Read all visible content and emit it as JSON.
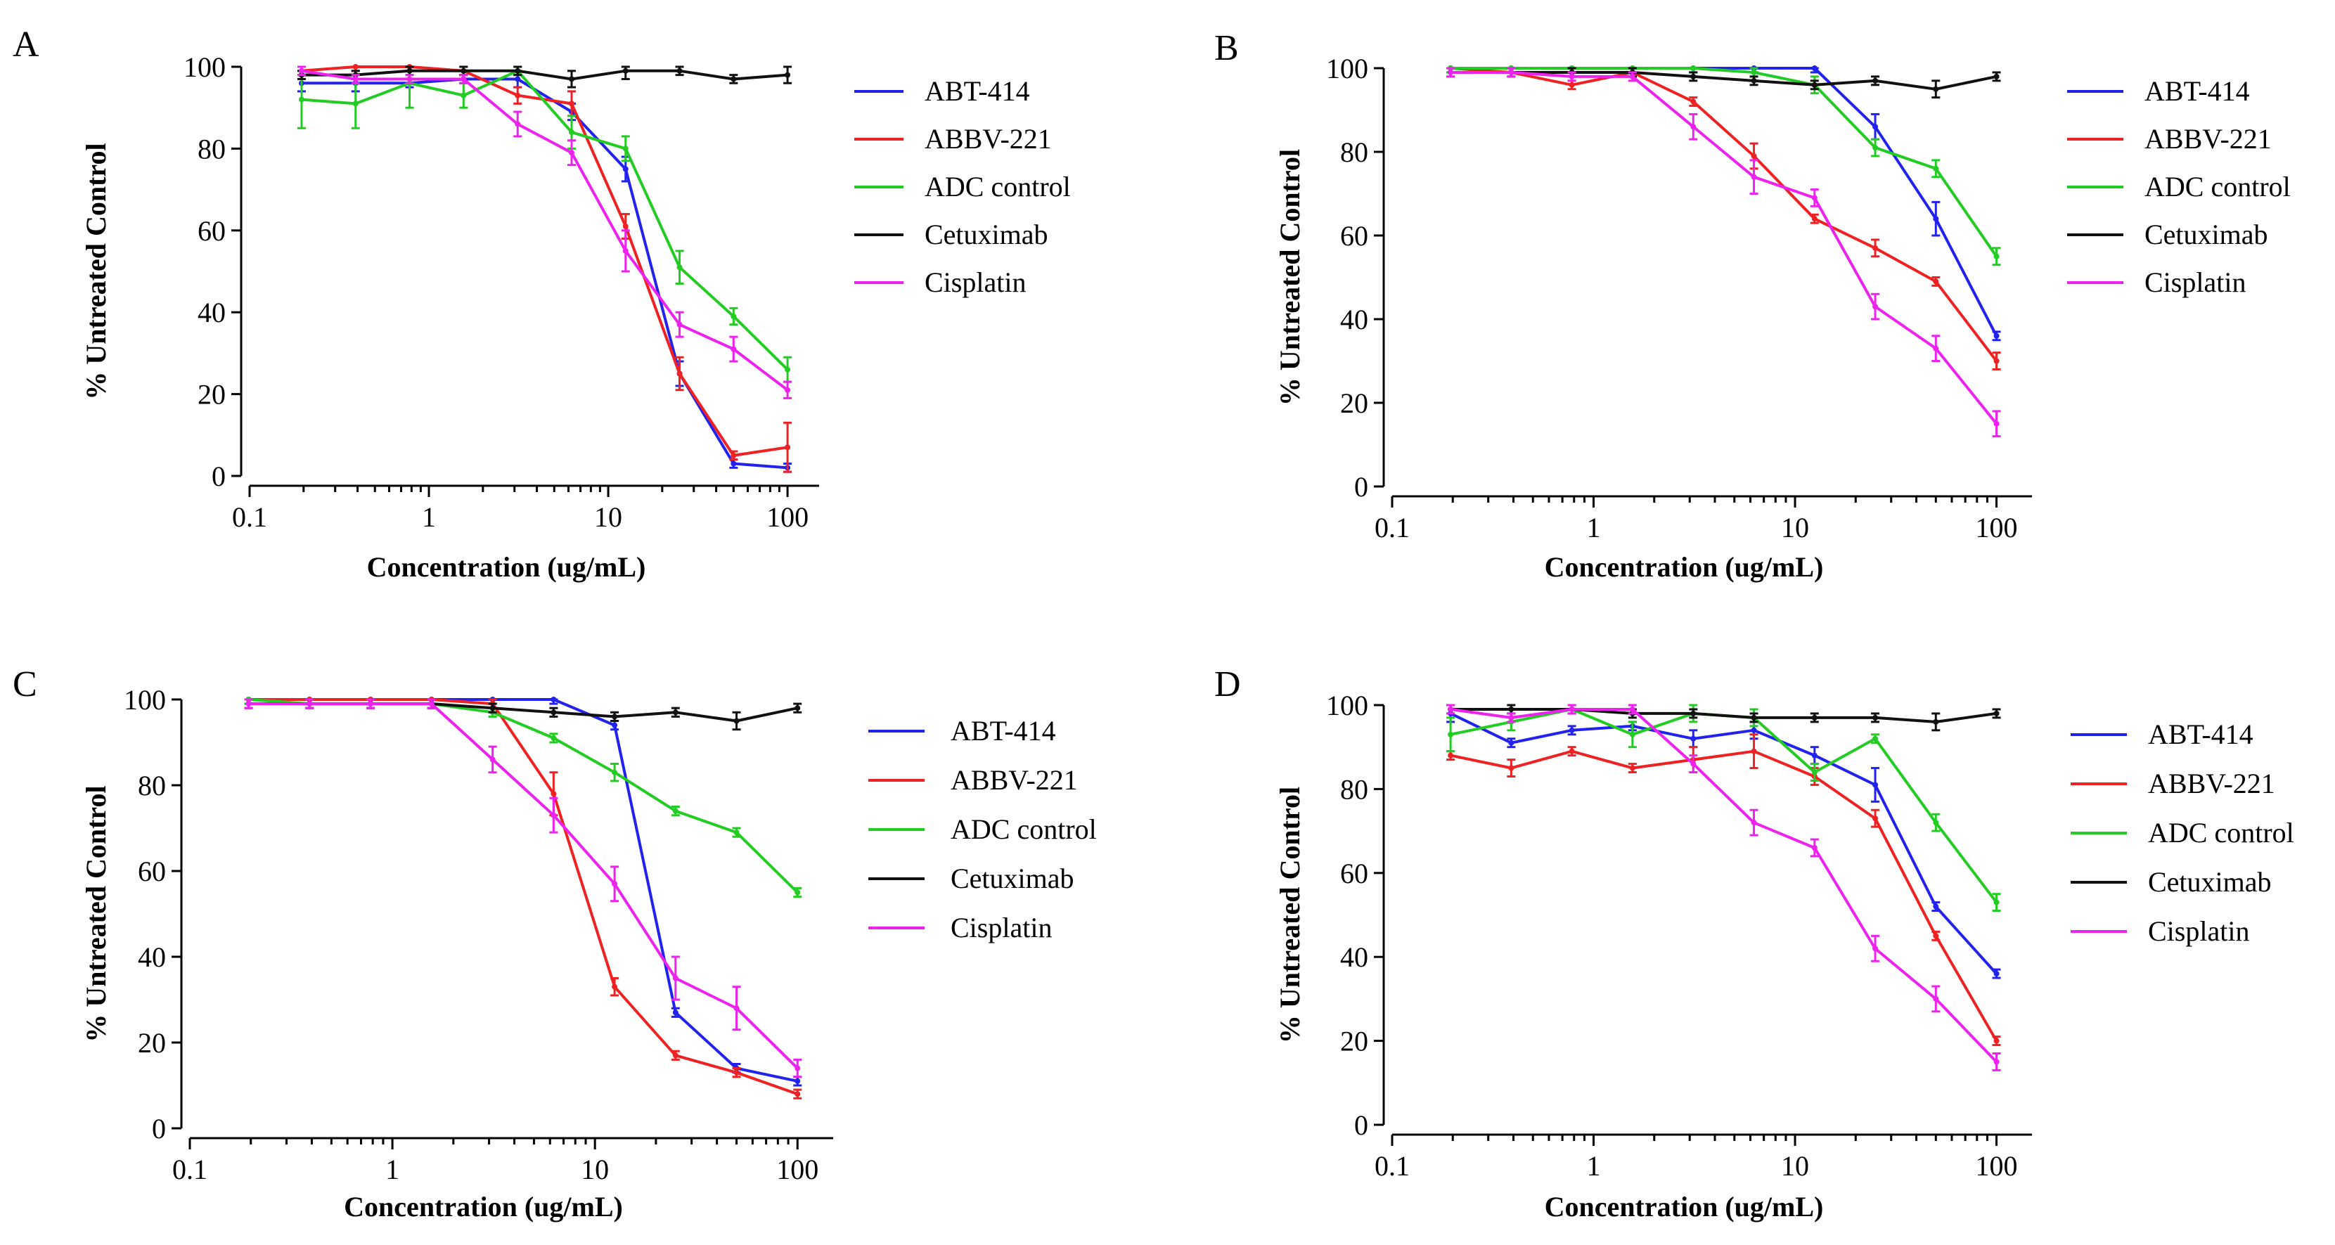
{
  "figure": {
    "x_ticks": [
      "0.1",
      "1",
      "10",
      "100"
    ],
    "y_ticks": [
      "0",
      "20",
      "40",
      "60",
      "80",
      "100"
    ]
  },
  "chart_data": [
    {
      "panel": "A",
      "type": "line",
      "xscale": "log",
      "xlim": [
        0.1,
        150
      ],
      "ylim": [
        0,
        100
      ],
      "xlabel": "Concentration (ug/mL)",
      "ylabel": "% Untreated Control",
      "legend_position": "right",
      "x": [
        0.195,
        0.39,
        0.78,
        1.56,
        3.125,
        6.25,
        12.5,
        25,
        50,
        100
      ],
      "series": [
        {
          "name": "ABT-414",
          "color": "#2222ee",
          "values": [
            96,
            96,
            96,
            97,
            97,
            89,
            75,
            25,
            3,
            2
          ],
          "error": [
            2,
            2,
            1,
            1,
            2,
            2,
            3,
            3,
            1,
            1
          ]
        },
        {
          "name": "ABBV-221",
          "color": "#ee2222",
          "values": [
            99,
            100,
            100,
            99,
            93,
            91,
            61,
            25,
            5,
            7
          ],
          "error": [
            1,
            1,
            1,
            1,
            2,
            3,
            3,
            4,
            1,
            6
          ]
        },
        {
          "name": "ADC control",
          "color": "#22cc22",
          "values": [
            92,
            91,
            96,
            93,
            99,
            84,
            80,
            51,
            39,
            26
          ],
          "error": [
            7,
            6,
            6,
            3,
            1,
            4,
            3,
            4,
            2,
            3
          ]
        },
        {
          "name": "Cetuximab",
          "color": "#111111",
          "values": [
            98,
            98,
            99,
            99,
            99,
            97,
            99,
            99,
            97,
            98
          ],
          "error": [
            1,
            1,
            1,
            1,
            1,
            2,
            2,
            1,
            1,
            2
          ]
        },
        {
          "name": "Cisplatin",
          "color": "#ee22ee",
          "values": [
            99,
            97,
            97,
            97,
            86,
            79,
            55,
            37,
            31,
            21
          ],
          "error": [
            1,
            1,
            1,
            1,
            3,
            3,
            5,
            3,
            3,
            2
          ]
        }
      ]
    },
    {
      "panel": "B",
      "type": "line",
      "xscale": "log",
      "xlim": [
        0.1,
        150
      ],
      "ylim": [
        0,
        100
      ],
      "xlabel": "Concentration (ug/mL)",
      "ylabel": "% Untreated Control",
      "legend_position": "right",
      "x": [
        0.195,
        0.39,
        0.78,
        1.56,
        3.125,
        6.25,
        12.5,
        25,
        50,
        100
      ],
      "series": [
        {
          "name": "ABT-414",
          "color": "#2222ee",
          "values": [
            100,
            100,
            100,
            100,
            100,
            100,
            100,
            86,
            64,
            36
          ],
          "error": [
            1,
            1,
            1,
            1,
            1,
            1,
            1,
            3,
            4,
            1
          ]
        },
        {
          "name": "ABBV-221",
          "color": "#ee2222",
          "values": [
            100,
            99,
            96,
            99,
            92,
            79,
            64,
            57,
            49,
            30
          ],
          "error": [
            1,
            1,
            1,
            1,
            1,
            3,
            1,
            2,
            1,
            2
          ]
        },
        {
          "name": "ADC control",
          "color": "#22cc22",
          "values": [
            100,
            100,
            100,
            100,
            100,
            99,
            96,
            81,
            76,
            55
          ],
          "error": [
            1,
            1,
            1,
            1,
            1,
            1,
            2,
            2,
            2,
            2
          ]
        },
        {
          "name": "Cetuximab",
          "color": "#111111",
          "values": [
            99,
            99,
            99,
            99,
            98,
            97,
            96,
            97,
            95,
            98
          ],
          "error": [
            1,
            1,
            1,
            1,
            1,
            1,
            1,
            1,
            2,
            1
          ]
        },
        {
          "name": "Cisplatin",
          "color": "#ee22ee",
          "values": [
            99,
            99,
            98,
            98,
            86,
            74,
            69,
            43,
            33,
            15
          ],
          "error": [
            1,
            1,
            1,
            1,
            3,
            4,
            2,
            3,
            3,
            3
          ]
        }
      ]
    },
    {
      "panel": "C",
      "type": "line",
      "xscale": "log",
      "xlim": [
        0.1,
        150
      ],
      "ylim": [
        0,
        100
      ],
      "xlabel": "Concentration (ug/mL)",
      "ylabel": "% Untreated Control",
      "legend_position": "right",
      "x": [
        0.195,
        0.39,
        0.78,
        1.56,
        3.125,
        6.25,
        12.5,
        25,
        50,
        100
      ],
      "series": [
        {
          "name": "ABT-414",
          "color": "#2222ee",
          "values": [
            100,
            100,
            100,
            100,
            100,
            100,
            94,
            27,
            14,
            11
          ],
          "error": [
            1,
            1,
            1,
            1,
            1,
            1,
            1,
            1,
            1,
            1
          ]
        },
        {
          "name": "ABBV-221",
          "color": "#ee2222",
          "values": [
            100,
            100,
            100,
            100,
            99,
            78,
            33,
            17,
            13,
            8
          ],
          "error": [
            1,
            1,
            1,
            1,
            1,
            5,
            2,
            1,
            1,
            1
          ]
        },
        {
          "name": "ADC control",
          "color": "#22cc22",
          "values": [
            100,
            99,
            99,
            99,
            97,
            91,
            83,
            74,
            69,
            55
          ],
          "error": [
            1,
            1,
            1,
            1,
            1,
            1,
            2,
            1,
            1,
            1
          ]
        },
        {
          "name": "Cetuximab",
          "color": "#111111",
          "values": [
            99,
            99,
            99,
            99,
            98,
            97,
            96,
            97,
            95,
            98
          ],
          "error": [
            1,
            1,
            1,
            1,
            1,
            1,
            1,
            1,
            2,
            1
          ]
        },
        {
          "name": "Cisplatin",
          "color": "#ee22ee",
          "values": [
            99,
            99,
            99,
            99,
            86,
            73,
            57,
            35,
            28,
            14
          ],
          "error": [
            1,
            1,
            1,
            1,
            3,
            4,
            4,
            5,
            5,
            2
          ]
        }
      ]
    },
    {
      "panel": "D",
      "type": "line",
      "xscale": "log",
      "xlim": [
        0.1,
        150
      ],
      "ylim": [
        0,
        100
      ],
      "xlabel": "Concentration (ug/mL)",
      "ylabel": "% Untreated Control",
      "legend_position": "right",
      "x": [
        0.195,
        0.39,
        0.78,
        1.56,
        3.125,
        6.25,
        12.5,
        25,
        50,
        100
      ],
      "series": [
        {
          "name": "ABT-414",
          "color": "#2222ee",
          "values": [
            98,
            91,
            94,
            95,
            92,
            94,
            88,
            81,
            52,
            36
          ],
          "error": [
            2,
            1,
            1,
            1,
            2,
            2,
            2,
            4,
            1,
            1
          ]
        },
        {
          "name": "ABBV-221",
          "color": "#ee2222",
          "values": [
            88,
            85,
            89,
            85,
            87,
            89,
            83,
            73,
            45,
            20
          ],
          "error": [
            1,
            2,
            1,
            1,
            3,
            4,
            2,
            2,
            1,
            1
          ]
        },
        {
          "name": "ADC control",
          "color": "#22cc22",
          "values": [
            93,
            96,
            99,
            93,
            98,
            97,
            84,
            92,
            72,
            53
          ],
          "error": [
            4,
            2,
            1,
            3,
            2,
            2,
            2,
            1,
            2,
            2
          ]
        },
        {
          "name": "Cetuximab",
          "color": "#111111",
          "values": [
            99,
            99,
            99,
            98,
            98,
            97,
            97,
            97,
            96,
            98
          ],
          "error": [
            1,
            1,
            1,
            1,
            1,
            1,
            1,
            1,
            2,
            1
          ]
        },
        {
          "name": "Cisplatin",
          "color": "#ee22ee",
          "values": [
            99,
            97,
            99,
            99,
            86,
            72,
            66,
            42,
            30,
            15
          ],
          "error": [
            1,
            1,
            1,
            1,
            2,
            3,
            2,
            3,
            3,
            2
          ]
        }
      ]
    }
  ]
}
